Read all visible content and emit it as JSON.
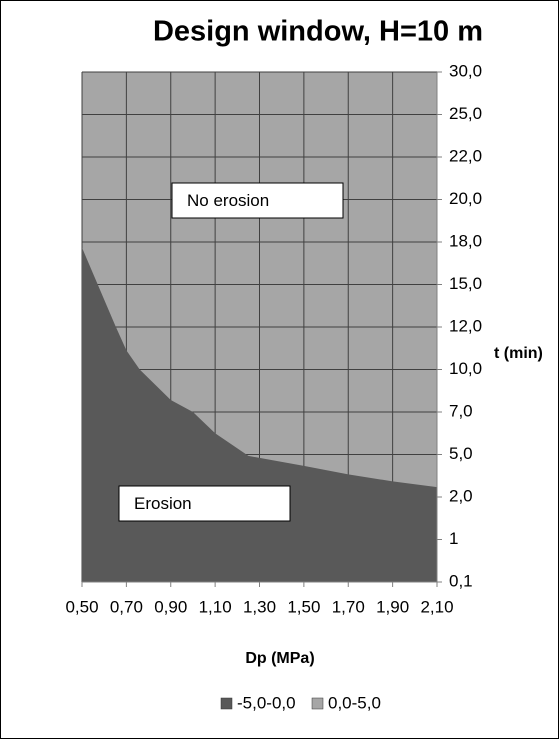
{
  "chart_data": {
    "type": "contour-area",
    "title": "Design window, H=10 m",
    "xlabel": "Dp (MPa)",
    "ylabel": "t (min)",
    "xlim": [
      0.5,
      2.1
    ],
    "xticks": [
      {
        "value": 0.5,
        "label": "0,50"
      },
      {
        "value": 0.7,
        "label": "0,70"
      },
      {
        "value": 0.9,
        "label": "0,90"
      },
      {
        "value": 1.1,
        "label": "1,10"
      },
      {
        "value": 1.3,
        "label": "1,30"
      },
      {
        "value": 1.5,
        "label": "1,50"
      },
      {
        "value": 1.7,
        "label": "1,70"
      },
      {
        "value": 1.9,
        "label": "1,90"
      },
      {
        "value": 2.1,
        "label": "2,10"
      }
    ],
    "yticks": [
      {
        "value": 0.1,
        "label": "0,1"
      },
      1,
      {
        "value": 2,
        "label": "2,0"
      },
      {
        "value": 5,
        "label": "5,0"
      },
      {
        "value": 7,
        "label": "7,0"
      },
      {
        "value": 10,
        "label": "10,0"
      },
      {
        "value": 12,
        "label": "12,0"
      },
      {
        "value": 15,
        "label": "15,0"
      },
      {
        "value": 18,
        "label": "18,0"
      },
      {
        "value": 20,
        "label": "20,0"
      },
      {
        "value": 22,
        "label": "22,0"
      },
      {
        "value": 25,
        "label": "25,0"
      },
      {
        "value": 30,
        "label": "30,0"
      }
    ],
    "grid": true,
    "series": [
      {
        "name": "-5,0-0,0",
        "color": "#595959",
        "x": [
          0.5,
          0.65,
          0.7,
          0.76,
          0.9,
          1.0,
          1.1,
          1.25,
          1.5,
          1.7,
          1.9,
          2.1
        ],
        "values": [
          17.6,
          12.1,
          10.9,
          10.0,
          7.85,
          7.0,
          6.0,
          4.9,
          4.2,
          3.6,
          3.1,
          2.7
        ]
      },
      {
        "name": "0,0-5,0",
        "color": "#a6a6a6"
      }
    ],
    "annotations": [
      "No erosion",
      "Erosion"
    ]
  }
}
